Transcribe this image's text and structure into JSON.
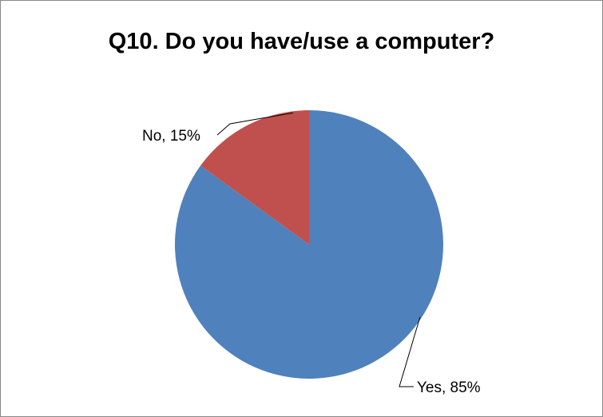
{
  "chart_data": {
    "type": "pie",
    "title": "Q10. Do you have/use a computer?",
    "categories": [
      "Yes",
      "No"
    ],
    "values": [
      85,
      15
    ],
    "data_labels": [
      "Yes, 85%",
      "No, 15%"
    ],
    "colors": [
      "#4f81bd",
      "#c0504d"
    ],
    "start_angle_deg": 0,
    "direction": "clockwise",
    "legend": "none"
  }
}
